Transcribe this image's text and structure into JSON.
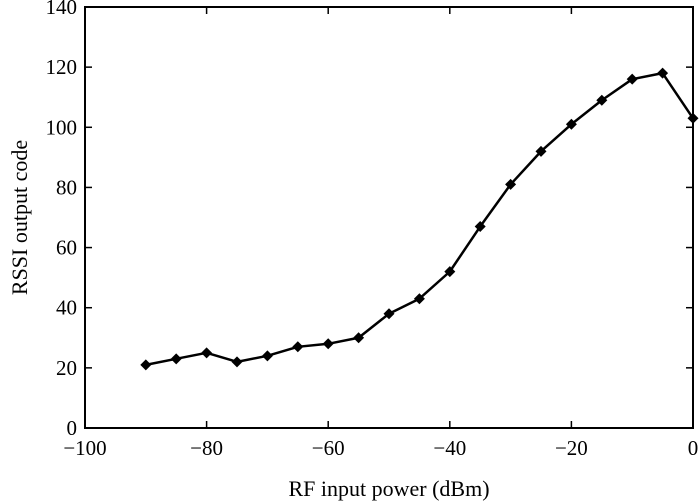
{
  "chart_data": {
    "type": "line",
    "title": "",
    "xlabel": "RF input power (dBm)",
    "ylabel": "RSSI output code",
    "xlim": [
      -100,
      0
    ],
    "ylim": [
      0,
      140
    ],
    "xticks": [
      -100,
      -80,
      -60,
      -40,
      -20,
      0
    ],
    "yticks": [
      0,
      20,
      40,
      60,
      80,
      100,
      120,
      140
    ],
    "xtick_labels": [
      "−100",
      "−80",
      "−60",
      "−40",
      "−20",
      "0"
    ],
    "ytick_labels": [
      "0",
      "20",
      "40",
      "60",
      "80",
      "100",
      "120",
      "140"
    ],
    "grid": false,
    "legend": false,
    "marker": "diamond",
    "line_color": "#000000",
    "series": [
      {
        "x": [
          -90,
          -85,
          -80,
          -75,
          -70,
          -65,
          -60,
          -55,
          -50,
          -45,
          -40,
          -35,
          -30,
          -25,
          -20,
          -15,
          -10,
          -5,
          0
        ],
        "y": [
          21,
          23,
          25,
          22,
          24,
          27,
          28,
          30,
          38,
          43,
          52,
          67,
          81,
          92,
          101,
          109,
          116,
          118,
          103
        ]
      }
    ]
  }
}
